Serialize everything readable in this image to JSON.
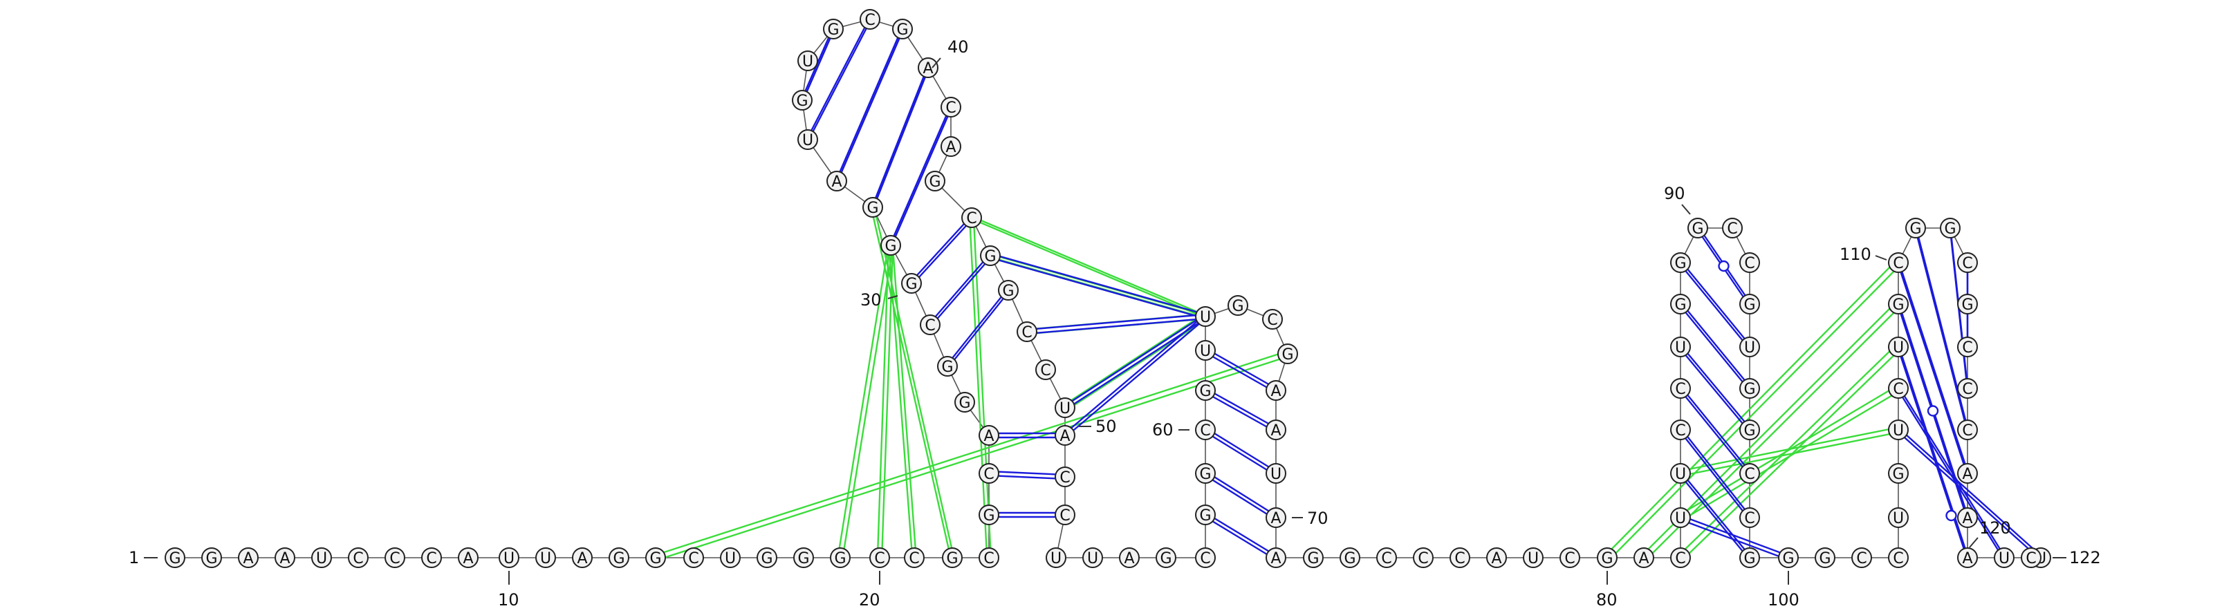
{
  "sequence": "GGAAUCCCAUUAGGCUGGGCCGCGCAGGCGGGAUGUGCGACAGCGGCCUACCUUAGCGGCGUUGCGAAUAAGGCCCAUCGACUUCCUGGGCCGUGGCCGGGCCUGUCUGCGGCGCCCAAAUUC",
  "length": 122,
  "labels": {
    "five_prime": "1",
    "three_prime": "122",
    "n10": "10",
    "n20": "20",
    "n30": "30",
    "n40": "40",
    "n50": "50",
    "n60": "60",
    "n70": "70",
    "n80": "80",
    "n90": "90",
    "n100": "100",
    "n110": "110",
    "n120": "120"
  },
  "base_pairs": [
    [
      21,
      50
    ],
    [
      22,
      49
    ],
    [
      23,
      48
    ],
    [
      24,
      47
    ],
    [
      25,
      46
    ],
    [
      26,
      45
    ],
    [
      27,
      44
    ],
    [
      28,
      43
    ],
    [
      29,
      42
    ],
    [
      30,
      41
    ],
    [
      34,
      75
    ],
    [
      35,
      74
    ],
    [
      36,
      73
    ],
    [
      37,
      72
    ],
    [
      38,
      71
    ],
    [
      39,
      70
    ],
    [
      40,
      69
    ],
    [
      50,
      56
    ],
    [
      51,
      57
    ],
    [
      52,
      58
    ],
    [
      53,
      59
    ],
    [
      55,
      59
    ],
    [
      56,
      58
    ],
    [
      83,
      89
    ],
    [
      84,
      88
    ],
    [
      85,
      87
    ],
    [
      86,
      90
    ],
    [
      87,
      91
    ],
    [
      88,
      92
    ],
    [
      105,
      121
    ],
    [
      106,
      120
    ],
    [
      107,
      119
    ],
    [
      108,
      118
    ],
    [
      109,
      117
    ],
    [
      110,
      116
    ],
    [
      111,
      115
    ]
  ],
  "colors": {
    "pair": "#1a1adc",
    "pseudoknot": "#3bdc3b",
    "backbone": "#555555",
    "node_fill": "#f2f2f2",
    "node_stroke": "#222222"
  }
}
